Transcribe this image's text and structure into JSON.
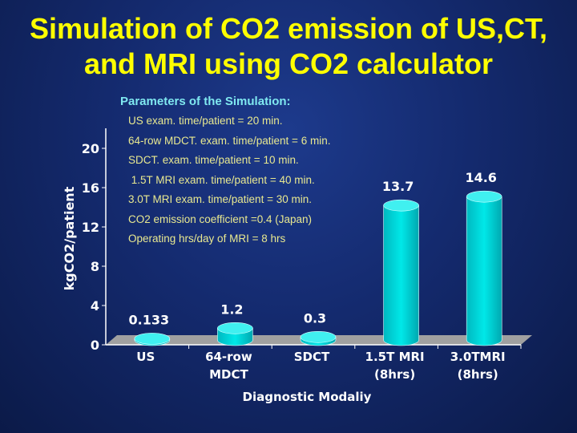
{
  "title": "Simulation of CO2 emission of US,CT, and MRI using CO2 calculator",
  "parameters": {
    "heading": "Parameters of the Simulation:",
    "lines": [
      "US exam. time/patient = 20 min.",
      "64-row MDCT. exam. time/patient = 6 min.",
      "SDCT. exam. time/patient = 10 min.",
      " 1.5T MRI exam. time/patient = 40 min.",
      "3.0T MRI exam. time/patient = 30 min.",
      "CO2 emission coefficient =0.4 (Japan)",
      "Operating hrs/day of MRI = 8 hrs"
    ]
  },
  "chart_data": {
    "type": "bar",
    "style": "3d-cylinder",
    "categories": [
      [
        "US"
      ],
      [
        "64-row",
        "MDCT"
      ],
      [
        "SDCT"
      ],
      [
        "1.5T MRI",
        "(8hrs)"
      ],
      [
        "3.0TMRI",
        "(8hrs)"
      ]
    ],
    "values": [
      0.133,
      1.2,
      0.3,
      13.7,
      14.6
    ],
    "data_labels": [
      "0.133",
      "1.2",
      "0.3",
      "13.7",
      "14.6"
    ],
    "xlabel": "Diagnostic Modaliy",
    "ylabel": "kgCO2/patient",
    "ylim": [
      0,
      20
    ],
    "yticks": [
      0,
      4,
      8,
      12,
      16,
      20
    ],
    "grid": false,
    "bar_color": "#00e8e8",
    "floor_color": "#a0a0a0"
  }
}
